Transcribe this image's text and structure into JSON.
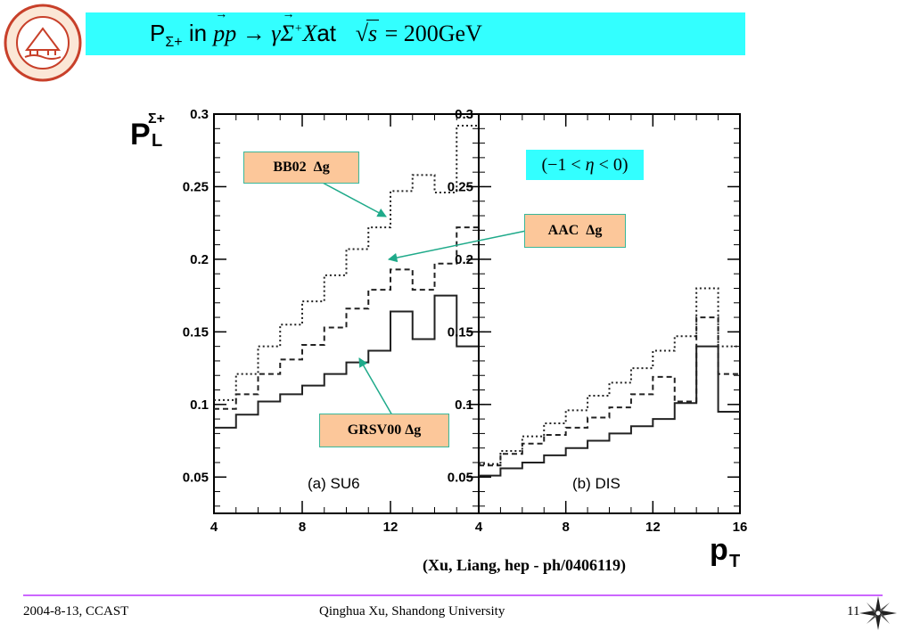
{
  "title": {
    "P": "P",
    "sub": "Σ+",
    "in": "in",
    "p1": "p",
    "p2": "p",
    "arrow": "→",
    "gamma": "γ",
    "sigma": "Σ",
    "sigma_sup": "+",
    "X": "X",
    "at": "at",
    "sqrt_s": "s",
    "equals": "=",
    "energy": "200",
    "unit": "GeV"
  },
  "colors": {
    "title_bar": "#33ffff",
    "annotation_fill": "#fcc79a",
    "annotation_arrow": "#1faa8a",
    "footer_line": "#cc66ff"
  },
  "icons": {
    "logo": "shandong-university-logo",
    "nav": "compass-icon"
  },
  "annotations": {
    "bb02": "BB02  Δg",
    "aac": "AAC  Δg",
    "grsv": "GRSV00 Δg",
    "eta_range": {
      "open": "(",
      "lo": "−1",
      "lt1": "<",
      "eta": "η",
      "lt2": "<",
      "hi": "0",
      "close": ")"
    }
  },
  "citation": "(Xu,  Liang, hep - ph/0406119)",
  "footer": {
    "left": "2004-8-13,  CCAST",
    "center": "Qinghua Xu, Shandong University",
    "page": "11"
  },
  "chart_data": {
    "type": "step",
    "ylabel": {
      "main": "P",
      "sub": "L",
      "sup": "Σ+"
    },
    "xlabel": {
      "main": "p",
      "sub": "T"
    },
    "ylim": [
      0.025,
      0.3
    ],
    "yticks": [
      0.05,
      0.1,
      0.15,
      0.2,
      0.25,
      0.3
    ],
    "ytick_labels": [
      "0.05",
      "0.1",
      "0.15",
      "0.2",
      "0.25",
      "0.3"
    ],
    "panels": [
      {
        "label": "(a) SU6",
        "xlim": [
          4,
          16
        ],
        "xticks": [
          4,
          8,
          12
        ],
        "xtick_labels": [
          "4",
          "8",
          "12"
        ],
        "edges": [
          4,
          5,
          6,
          7,
          8,
          9,
          10,
          11,
          12,
          13,
          14,
          15,
          16
        ],
        "series": [
          {
            "style": "dotted",
            "values": [
              0.103,
              0.121,
              0.14,
              0.155,
              0.171,
              0.189,
              0.207,
              0.222,
              0.247,
              0.258,
              0.246,
              0.292
            ]
          },
          {
            "style": "dashed",
            "values": [
              0.097,
              0.107,
              0.121,
              0.131,
              0.141,
              0.153,
              0.166,
              0.179,
              0.193,
              0.179,
              0.197,
              0.222
            ]
          },
          {
            "style": "solid",
            "values": [
              0.084,
              0.093,
              0.102,
              0.107,
              0.113,
              0.121,
              0.129,
              0.137,
              0.164,
              0.145,
              0.175,
              0.14
            ]
          }
        ]
      },
      {
        "label": "(b) DIS",
        "xlim": [
          4,
          16
        ],
        "xticks": [
          4,
          8,
          12,
          16
        ],
        "xtick_labels": [
          "4",
          "8",
          "12",
          "16"
        ],
        "edges": [
          4,
          5,
          6,
          7,
          8,
          9,
          10,
          11,
          12,
          13,
          14,
          15,
          16
        ],
        "series": [
          {
            "style": "dotted",
            "values": [
              0.059,
              0.068,
              0.078,
              0.087,
              0.096,
              0.106,
              0.115,
              0.125,
              0.137,
              0.147,
              0.18,
              0.14
            ]
          },
          {
            "style": "dashed",
            "values": [
              0.058,
              0.066,
              0.073,
              0.079,
              0.084,
              0.091,
              0.098,
              0.107,
              0.119,
              0.102,
              0.16,
              0.121
            ]
          },
          {
            "style": "solid",
            "values": [
              0.051,
              0.056,
              0.06,
              0.065,
              0.07,
              0.075,
              0.08,
              0.085,
              0.09,
              0.101,
              0.14,
              0.095
            ]
          }
        ]
      }
    ]
  }
}
